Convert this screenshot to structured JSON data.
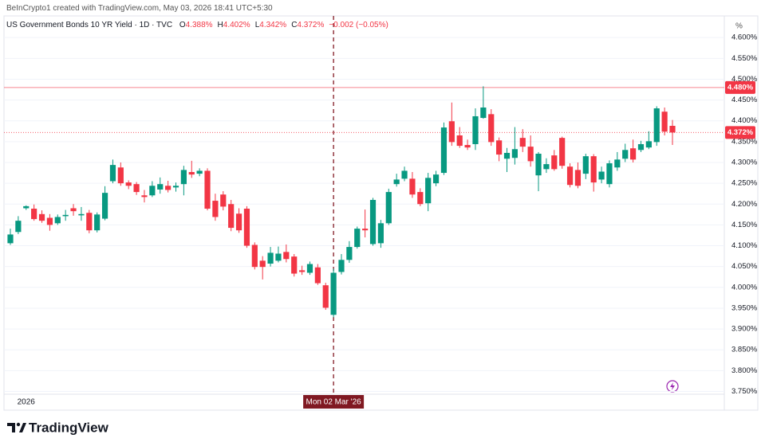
{
  "credit": "BeInCrypto1 created with TradingView.com, May 03, 2026 18:41 UTC+5:30",
  "brand": "TradingView",
  "chart_data": {
    "type": "candlestick",
    "title": "US Government Bonds 10 YR Yield · 1D · TVC",
    "ohlc_legend": [
      {
        "key": "O",
        "text": "4.388%"
      },
      {
        "key": "H",
        "text": "4.402%"
      },
      {
        "key": "L",
        "text": "4.342%"
      },
      {
        "key": "C",
        "text": "4.372%"
      }
    ],
    "change": "−0.002 (−0.05%)",
    "axis_unit": "%",
    "categories": [
      null,
      null,
      "2026",
      null,
      null,
      null,
      null,
      null,
      null,
      null,
      null,
      null,
      null,
      null,
      null,
      null,
      null,
      null,
      null,
      null,
      null,
      null,
      null,
      null,
      null,
      null,
      null,
      null,
      null,
      null,
      null,
      null,
      null,
      null,
      null,
      null,
      null,
      null,
      null,
      null,
      null,
      "Mon 02 Mar '26",
      null,
      null,
      null,
      null,
      null,
      null,
      null,
      null,
      null,
      null,
      null,
      null,
      null,
      null,
      null,
      null,
      null,
      null,
      null,
      null,
      null,
      null,
      null,
      null,
      null,
      null,
      null,
      null,
      null,
      null,
      null,
      null,
      null,
      null,
      null,
      null,
      null,
      null,
      null,
      null,
      null,
      null,
      null
    ],
    "open": [
      4.106,
      4.133,
      4.19,
      4.189,
      4.176,
      4.167,
      4.154,
      4.171,
      4.19,
      4.173,
      4.179,
      4.137,
      4.165,
      4.255,
      4.288,
      4.252,
      4.248,
      4.221,
      4.221,
      4.235,
      4.244,
      4.24,
      4.248,
      4.277,
      4.273,
      4.28,
      4.208,
      4.223,
      4.2,
      4.177,
      4.189,
      4.102,
      4.064,
      4.057,
      4.064,
      4.085,
      4.074,
      4.041,
      4.035,
      4.048,
      4.005,
      3.934,
      4.037,
      4.066,
      4.097,
      4.141,
      4.104,
      4.106,
      4.154,
      4.248,
      4.261,
      4.261,
      4.229,
      4.202,
      4.25,
      4.275,
      4.399,
      4.365,
      4.342,
      4.344,
      4.407,
      4.416,
      4.353,
      4.309,
      4.311,
      4.359,
      4.338,
      4.269,
      4.284,
      4.317,
      4.359,
      4.29,
      4.282,
      4.273,
      4.315,
      4.259,
      4.248,
      4.288,
      4.309,
      4.334,
      4.33,
      4.336,
      4.349,
      4.422,
      4.388
    ],
    "high": [
      4.141,
      4.171,
      4.197,
      4.199,
      4.185,
      4.176,
      4.175,
      4.186,
      4.2,
      4.193,
      4.186,
      4.18,
      4.243,
      4.307,
      4.3,
      4.257,
      4.253,
      4.234,
      4.255,
      4.264,
      4.256,
      4.252,
      4.292,
      4.304,
      4.286,
      4.286,
      4.225,
      4.231,
      4.21,
      4.19,
      4.195,
      4.108,
      4.075,
      4.097,
      4.098,
      4.103,
      4.08,
      4.052,
      4.062,
      4.056,
      4.011,
      4.045,
      4.08,
      4.111,
      4.146,
      4.187,
      4.215,
      4.162,
      4.237,
      4.273,
      4.29,
      4.277,
      4.238,
      4.275,
      4.28,
      4.396,
      4.444,
      4.385,
      4.355,
      4.43,
      4.483,
      4.428,
      4.36,
      4.335,
      4.385,
      4.38,
      4.365,
      4.325,
      4.31,
      4.33,
      4.362,
      4.298,
      4.3,
      4.321,
      4.32,
      4.29,
      4.305,
      4.325,
      4.345,
      4.355,
      4.352,
      4.375,
      4.435,
      4.432,
      4.402
    ],
    "low": [
      4.102,
      4.128,
      4.186,
      4.16,
      4.155,
      4.136,
      4.15,
      4.16,
      4.172,
      4.16,
      4.13,
      4.132,
      4.161,
      4.25,
      4.244,
      4.236,
      4.222,
      4.204,
      4.217,
      4.225,
      4.228,
      4.23,
      4.221,
      4.263,
      4.267,
      4.185,
      4.16,
      4.185,
      4.135,
      4.131,
      4.095,
      4.043,
      4.019,
      4.05,
      4.06,
      4.06,
      4.026,
      4.03,
      4.03,
      4.006,
      3.946,
      3.928,
      4.031,
      4.059,
      4.093,
      4.12,
      4.1,
      4.095,
      4.15,
      4.242,
      4.255,
      4.215,
      4.195,
      4.183,
      4.243,
      4.27,
      4.34,
      4.335,
      4.33,
      4.33,
      4.405,
      4.34,
      4.303,
      4.277,
      4.295,
      4.325,
      4.29,
      4.231,
      4.275,
      4.28,
      4.285,
      4.24,
      4.238,
      4.26,
      4.23,
      4.25,
      4.24,
      4.28,
      4.301,
      4.3,
      4.325,
      4.332,
      4.34,
      4.365,
      4.342
    ],
    "close": [
      4.127,
      4.16,
      4.195,
      4.164,
      4.16,
      4.15,
      4.169,
      4.174,
      4.183,
      4.176,
      4.137,
      4.175,
      4.227,
      4.294,
      4.25,
      4.244,
      4.229,
      4.217,
      4.244,
      4.248,
      4.234,
      4.244,
      4.282,
      4.271,
      4.28,
      4.189,
      4.169,
      4.194,
      4.143,
      4.137,
      4.1,
      4.049,
      4.049,
      4.083,
      4.081,
      4.068,
      4.033,
      4.037,
      4.056,
      4.01,
      3.951,
      4.035,
      4.066,
      4.097,
      4.141,
      4.137,
      4.21,
      4.154,
      4.229,
      4.259,
      4.28,
      4.223,
      4.2,
      4.263,
      4.271,
      4.384,
      4.349,
      4.34,
      4.336,
      4.411,
      4.432,
      4.349,
      4.319,
      4.323,
      4.332,
      4.338,
      4.303,
      4.321,
      4.296,
      4.284,
      4.292,
      4.246,
      4.244,
      4.315,
      4.252,
      4.278,
      4.298,
      4.307,
      4.33,
      4.307,
      4.344,
      4.351,
      4.43,
      4.374,
      4.372
    ],
    "up_color": "#089981",
    "down_color": "#f23645",
    "price_lines": [
      {
        "value": 4.48,
        "label": "4.480%",
        "color": "#f23645",
        "style": "solid"
      },
      {
        "value": 4.372,
        "label": "4.372%",
        "color": "#f23645",
        "style": "dotted"
      }
    ],
    "ylim": [
      3.705,
      4.652
    ],
    "yticks": [
      {
        "value": 4.6,
        "label": "4.600%"
      },
      {
        "value": 4.55,
        "label": "4.550%"
      },
      {
        "value": 4.5,
        "label": "4.500%"
      },
      {
        "value": 4.45,
        "label": "4.450%"
      },
      {
        "value": 4.4,
        "label": "4.400%"
      },
      {
        "value": 4.35,
        "label": "4.350%"
      },
      {
        "value": 4.3,
        "label": "4.300%"
      },
      {
        "value": 4.25,
        "label": "4.250%"
      },
      {
        "value": 4.2,
        "label": "4.200%"
      },
      {
        "value": 4.15,
        "label": "4.150%"
      },
      {
        "value": 4.1,
        "label": "4.100%"
      },
      {
        "value": 4.05,
        "label": "4.050%"
      },
      {
        "value": 4.0,
        "label": "4.000%"
      },
      {
        "value": 3.95,
        "label": "3.950%"
      },
      {
        "value": 3.9,
        "label": "3.900%"
      },
      {
        "value": 3.85,
        "label": "3.850%"
      },
      {
        "value": 3.8,
        "label": "3.800%"
      },
      {
        "value": 3.75,
        "label": "3.750%"
      }
    ],
    "grid": true
  }
}
